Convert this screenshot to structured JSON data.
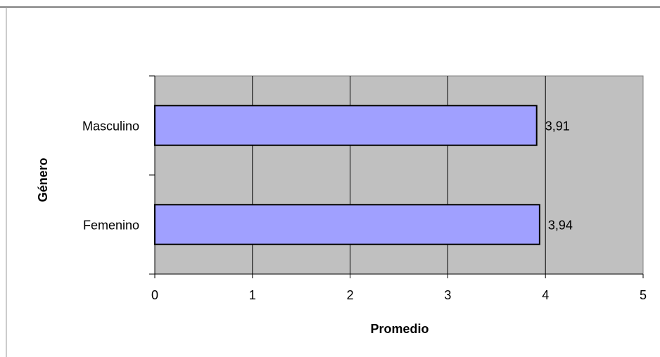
{
  "colors": {
    "plot_background": "#c0c0c0",
    "bar_fill": "#a0a0ff",
    "bar_stroke": "#000000",
    "gridline": "#000000"
  },
  "chart_data": {
    "type": "bar",
    "orientation": "horizontal",
    "categories": [
      "Masculino",
      "Femenino"
    ],
    "values": [
      3.91,
      3.94
    ],
    "data_labels": [
      "3,91",
      "3,94"
    ],
    "xlabel": "Promedio",
    "ylabel": "Género",
    "xlim": [
      0,
      5
    ],
    "xticks": [
      "0",
      "1",
      "2",
      "3",
      "4",
      "5"
    ],
    "grid": "vertical",
    "legend": "none"
  }
}
